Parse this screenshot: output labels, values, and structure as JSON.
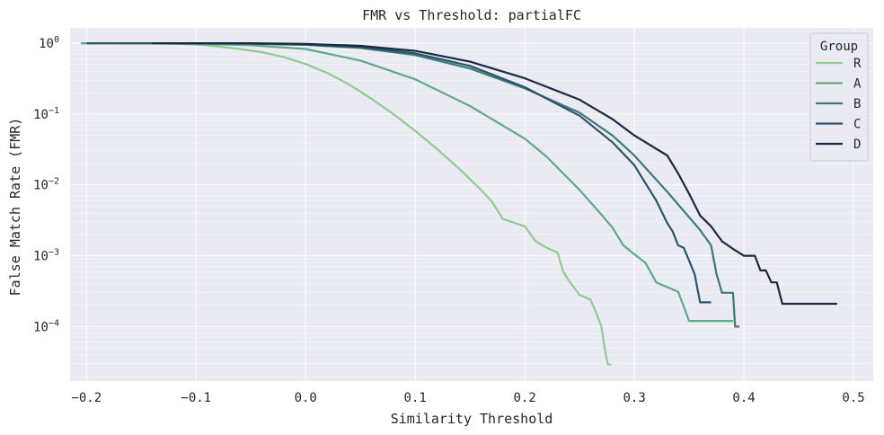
{
  "chart_data": {
    "type": "line",
    "title": "FMR vs Threshold: partialFC",
    "xlabel": "Similarity Threshold",
    "ylabel": "False Match Rate (FMR)",
    "xscale": "linear",
    "yscale": "log",
    "xlim": [
      -0.215,
      0.518
    ],
    "ylim": [
      1.7e-05,
      1.65
    ],
    "x_ticks": [
      -0.2,
      -0.1,
      0.0,
      0.1,
      0.2,
      0.3,
      0.4,
      0.5
    ],
    "x_tick_labels": [
      "−0.2",
      "−0.1",
      "0.0",
      "0.1",
      "0.2",
      "0.3",
      "0.4",
      "0.5"
    ],
    "y_ticks": [
      {
        "value": 1,
        "base": "10",
        "exp": "0"
      },
      {
        "value": 0.1,
        "base": "10",
        "exp": "−1"
      },
      {
        "value": 0.01,
        "base": "10",
        "exp": "−2"
      },
      {
        "value": 0.001,
        "base": "10",
        "exp": "−3"
      },
      {
        "value": 0.0001,
        "base": "10",
        "exp": "−4"
      }
    ],
    "grid": true,
    "legend": {
      "title": "Group",
      "placement": "top-right"
    },
    "series": [
      {
        "name": "R",
        "color": "#93c995",
        "points": [
          [
            -0.205,
            1
          ],
          [
            -0.15,
            1
          ],
          [
            -0.12,
            0.985
          ],
          [
            -0.1,
            0.96
          ],
          [
            -0.08,
            0.9
          ],
          [
            -0.06,
            0.83
          ],
          [
            -0.04,
            0.75
          ],
          [
            -0.02,
            0.64
          ],
          [
            0.0,
            0.51
          ],
          [
            0.02,
            0.38
          ],
          [
            0.04,
            0.26
          ],
          [
            0.06,
            0.165
          ],
          [
            0.08,
            0.1
          ],
          [
            0.1,
            0.058
          ],
          [
            0.12,
            0.032
          ],
          [
            0.14,
            0.017
          ],
          [
            0.16,
            0.0085
          ],
          [
            0.17,
            0.0058
          ],
          [
            0.18,
            0.0033
          ],
          [
            0.2,
            0.0026
          ],
          [
            0.21,
            0.0016
          ],
          [
            0.22,
            0.0013
          ],
          [
            0.23,
            0.0011
          ],
          [
            0.235,
            0.0006
          ],
          [
            0.24,
            0.00045
          ],
          [
            0.25,
            0.00028
          ],
          [
            0.26,
            0.00024
          ],
          [
            0.265,
            0.00016
          ],
          [
            0.27,
            0.0001
          ],
          [
            0.272,
            6e-05
          ],
          [
            0.274,
            4e-05
          ],
          [
            0.276,
            2.9e-05
          ],
          [
            0.279,
            2.9e-05
          ]
        ]
      },
      {
        "name": "A",
        "color": "#5fa88a",
        "points": [
          [
            -0.205,
            1
          ],
          [
            -0.15,
            1
          ],
          [
            -0.1,
            0.98
          ],
          [
            -0.05,
            0.94
          ],
          [
            0.0,
            0.83
          ],
          [
            0.05,
            0.57
          ],
          [
            0.1,
            0.31
          ],
          [
            0.15,
            0.13
          ],
          [
            0.2,
            0.045
          ],
          [
            0.22,
            0.025
          ],
          [
            0.25,
            0.0085
          ],
          [
            0.27,
            0.0038
          ],
          [
            0.28,
            0.0025
          ],
          [
            0.29,
            0.0014
          ],
          [
            0.3,
            0.00105
          ],
          [
            0.31,
            0.0008
          ],
          [
            0.32,
            0.00042
          ],
          [
            0.34,
            0.00031
          ],
          [
            0.35,
            0.00012
          ],
          [
            0.39,
            0.00012
          ]
        ]
      },
      {
        "name": "B",
        "color": "#3e7a78",
        "points": [
          [
            -0.17,
            1
          ],
          [
            -0.1,
            1
          ],
          [
            -0.05,
            0.985
          ],
          [
            0.0,
            0.95
          ],
          [
            0.05,
            0.86
          ],
          [
            0.1,
            0.68
          ],
          [
            0.15,
            0.44
          ],
          [
            0.2,
            0.23
          ],
          [
            0.25,
            0.105
          ],
          [
            0.28,
            0.05
          ],
          [
            0.3,
            0.026
          ],
          [
            0.33,
            0.008
          ],
          [
            0.35,
            0.0035
          ],
          [
            0.36,
            0.0023
          ],
          [
            0.37,
            0.0014
          ],
          [
            0.375,
            0.00055
          ],
          [
            0.38,
            0.0003
          ],
          [
            0.39,
            0.0003
          ],
          [
            0.392,
            0.0001
          ],
          [
            0.396,
            0.0001
          ]
        ]
      },
      {
        "name": "C",
        "color": "#2b5467",
        "points": [
          [
            -0.2,
            1
          ],
          [
            -0.1,
            1
          ],
          [
            -0.05,
            0.99
          ],
          [
            0.0,
            0.96
          ],
          [
            0.05,
            0.88
          ],
          [
            0.1,
            0.72
          ],
          [
            0.15,
            0.48
          ],
          [
            0.2,
            0.24
          ],
          [
            0.25,
            0.095
          ],
          [
            0.28,
            0.04
          ],
          [
            0.3,
            0.019
          ],
          [
            0.32,
            0.006
          ],
          [
            0.33,
            0.0029
          ],
          [
            0.335,
            0.0022
          ],
          [
            0.34,
            0.0014
          ],
          [
            0.345,
            0.0013
          ],
          [
            0.35,
            0.00085
          ],
          [
            0.355,
            0.00055
          ],
          [
            0.36,
            0.00022
          ],
          [
            0.37,
            0.00022
          ]
        ]
      },
      {
        "name": "D",
        "color": "#1c2a40",
        "points": [
          [
            -0.14,
            1
          ],
          [
            -0.05,
            1
          ],
          [
            0.0,
            0.98
          ],
          [
            0.05,
            0.92
          ],
          [
            0.1,
            0.78
          ],
          [
            0.15,
            0.55
          ],
          [
            0.2,
            0.32
          ],
          [
            0.25,
            0.16
          ],
          [
            0.28,
            0.085
          ],
          [
            0.3,
            0.05
          ],
          [
            0.33,
            0.026
          ],
          [
            0.34,
            0.0145
          ],
          [
            0.35,
            0.0075
          ],
          [
            0.36,
            0.0037
          ],
          [
            0.37,
            0.0026
          ],
          [
            0.38,
            0.0016
          ],
          [
            0.39,
            0.00125
          ],
          [
            0.4,
            0.001
          ],
          [
            0.41,
            0.001
          ],
          [
            0.415,
            0.00062
          ],
          [
            0.42,
            0.00062
          ],
          [
            0.425,
            0.00042
          ],
          [
            0.43,
            0.00042
          ],
          [
            0.435,
            0.00021
          ],
          [
            0.485,
            0.00021
          ]
        ]
      }
    ]
  }
}
